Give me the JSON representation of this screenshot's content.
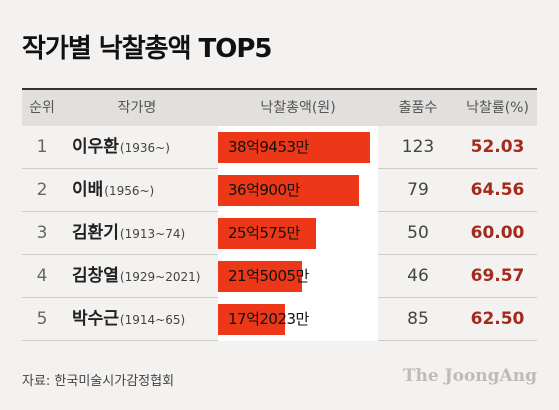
{
  "title": "작가별 낙찰총액 TOP5",
  "chart_data": {
    "type": "table",
    "columns": [
      "순위",
      "작가명",
      "낙찰총액(원)",
      "출품수",
      "낙찰률(%)"
    ],
    "rows": [
      {
        "rank": "1",
        "artist": "이우환",
        "years": "(1936~)",
        "amount_label": "38억9453만",
        "amount_eok": 38.9453,
        "count": "123",
        "rate": "52.03"
      },
      {
        "rank": "2",
        "artist": "이배",
        "years": "(1956~)",
        "amount_label": "36억900만",
        "amount_eok": 36.09,
        "count": "79",
        "rate": "64.56"
      },
      {
        "rank": "3",
        "artist": "김환기",
        "years": "(1913~74)",
        "amount_label": "25억575만",
        "amount_eok": 25.0575,
        "count": "50",
        "rate": "60.00"
      },
      {
        "rank": "4",
        "artist": "김창열",
        "years": "(1929~2021)",
        "amount_label": "21억5005만",
        "amount_eok": 21.5005,
        "count": "46",
        "rate": "69.57"
      },
      {
        "rank": "5",
        "artist": "박수근",
        "years": "(1914~65)",
        "amount_label": "17억2023만",
        "amount_eok": 17.2023,
        "count": "85",
        "rate": "62.50"
      }
    ],
    "bar_color": "#ec3818",
    "rate_color": "#a32b1b"
  },
  "source": "자료: 한국미술시가감정협회",
  "logo": "The JoongAng"
}
